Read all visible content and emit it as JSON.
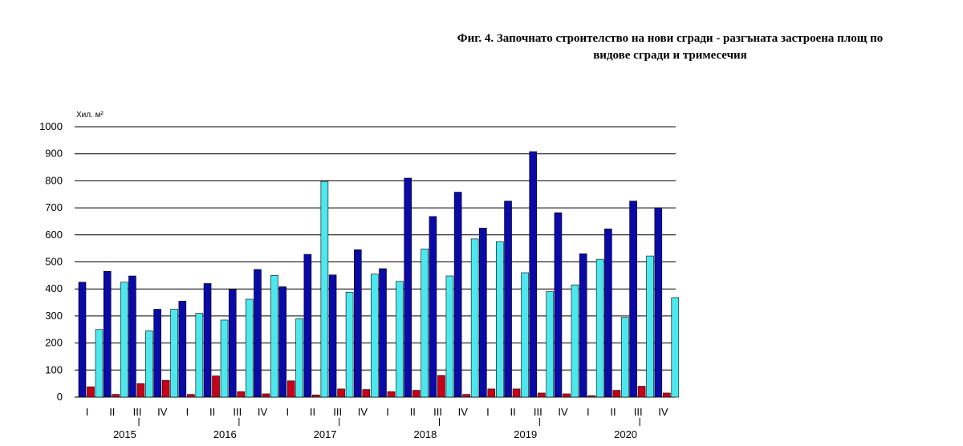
{
  "title": {
    "line1": "Фиг. 4. Започнато строителство на нови сгради - разгъната застроена площ по",
    "line2": "видове сгради и тримесечия"
  },
  "colors": {
    "series1": "#0a0aa8",
    "series2": "#c8001a",
    "series3": "#4de8ee",
    "grid": "#000000"
  },
  "chart_data": {
    "type": "bar",
    "ylabel": "Хил. м²",
    "ylim": [
      0,
      1000
    ],
    "yticks": [
      0,
      100,
      200,
      300,
      400,
      500,
      600,
      700,
      800,
      900,
      1000
    ],
    "grid": true,
    "categories": [
      "I",
      "II",
      "III",
      "IV",
      "I",
      "II",
      "III",
      "IV",
      "I",
      "II",
      "III",
      "IV",
      "I",
      "II",
      "III",
      "IV",
      "I",
      "II",
      "III",
      "IV",
      "I",
      "II",
      "III",
      "IV"
    ],
    "years": [
      "2015",
      "2016",
      "2017",
      "2018",
      "2019",
      "2020"
    ],
    "series": [
      {
        "values": [
          425,
          465,
          448,
          325,
          355,
          420,
          398,
          472,
          408,
          528,
          452,
          545,
          475,
          810,
          668,
          758,
          625,
          725,
          908,
          682,
          530,
          622,
          725,
          700
        ]
      },
      {
        "values": [
          38,
          10,
          50,
          62,
          10,
          78,
          20,
          12,
          60,
          8,
          30,
          28,
          20,
          25,
          80,
          10,
          30,
          30,
          15,
          12,
          5,
          25,
          40,
          15
        ]
      },
      {
        "values": [
          250,
          425,
          245,
          325,
          310,
          285,
          362,
          450,
          290,
          798,
          388,
          455,
          428,
          548,
          448,
          585,
          575,
          460,
          390,
          415,
          510,
          295,
          522,
          368
        ]
      }
    ]
  }
}
